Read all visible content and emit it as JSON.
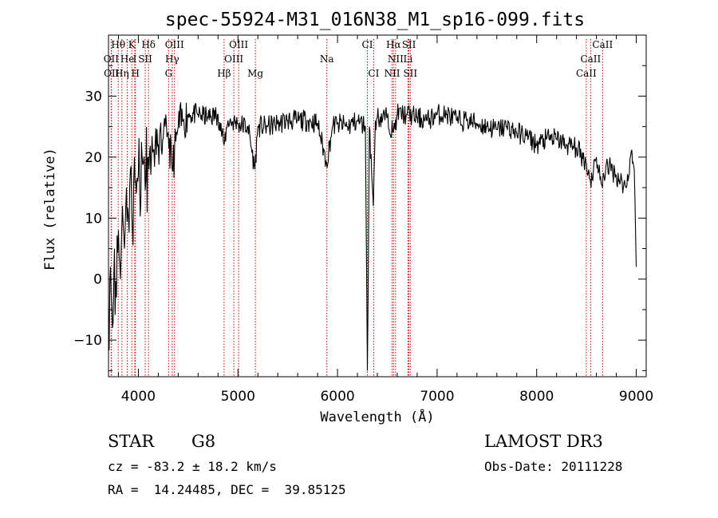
{
  "chart_data": {
    "type": "line",
    "title": "spec-55924-M31_016N38_M1_sp16-099.fits",
    "xlabel": "Wavelength (Å)",
    "ylabel": "Flux (relative)",
    "xlim": [
      3700,
      9100
    ],
    "ylim": [
      -16,
      40
    ],
    "x_ticks": [
      4000,
      5000,
      6000,
      7000,
      8000,
      9000
    ],
    "y_ticks": [
      -10,
      0,
      10,
      20,
      30
    ],
    "grid": false,
    "series": [
      {
        "name": "flux",
        "x": [
          3700,
          3720,
          3740,
          3760,
          3780,
          3800,
          3820,
          3840,
          3860,
          3880,
          3900,
          3920,
          3940,
          3960,
          3980,
          4000,
          4050,
          4100,
          4150,
          4200,
          4250,
          4300,
          4340,
          4400,
          4450,
          4500,
          4600,
          4700,
          4800,
          4860,
          4900,
          5000,
          5100,
          5170,
          5200,
          5300,
          5400,
          5500,
          5600,
          5700,
          5800,
          5890,
          5950,
          6000,
          6100,
          6200,
          6280,
          6300,
          6320,
          6360,
          6380,
          6400,
          6500,
          6560,
          6600,
          6700,
          6800,
          6900,
          7000,
          7100,
          7200,
          7300,
          7400,
          7500,
          7600,
          7700,
          7800,
          7900,
          8000,
          8100,
          8200,
          8300,
          8400,
          8500,
          8540,
          8600,
          8660,
          8700,
          8800,
          8900,
          8950,
          8980,
          9000
        ],
        "y": [
          -5,
          2,
          -8,
          5,
          -3,
          8,
          0,
          12,
          5,
          15,
          10,
          18,
          8,
          20,
          14,
          17,
          19,
          20,
          21,
          22,
          23,
          24,
          18,
          25,
          26,
          27,
          27,
          26.5,
          27,
          22,
          26,
          25.5,
          25,
          18,
          25,
          25,
          25.5,
          26,
          26,
          26,
          25.5,
          19,
          25,
          25.5,
          25,
          26,
          25,
          -15,
          25,
          12,
          26,
          26.5,
          26.5,
          24,
          27,
          27,
          26.5,
          26,
          27,
          27,
          26,
          26,
          25.5,
          25,
          24.5,
          25,
          24,
          23.5,
          22,
          23,
          23,
          22,
          21.5,
          19,
          16,
          20,
          15,
          19,
          17,
          15,
          21,
          18,
          2
        ]
      }
    ],
    "spectral_lines": [
      {
        "label": "Hθ",
        "x": 3798,
        "row": 0
      },
      {
        "label": "K",
        "x": 3934,
        "row": 0
      },
      {
        "label": "Hδ",
        "x": 4102,
        "row": 0
      },
      {
        "label": "OIII",
        "x": 4363,
        "row": 0
      },
      {
        "label": "OIII",
        "x": 5007,
        "row": 0
      },
      {
        "label": "CI",
        "x": 6300,
        "row": 0
      },
      {
        "label": "Hα",
        "x": 6563,
        "row": 0
      },
      {
        "label": "SII",
        "x": 6717,
        "row": 0
      },
      {
        "label": "CaII",
        "x": 8662,
        "row": 0
      },
      {
        "label": "OII",
        "x": 3727,
        "row": 1
      },
      {
        "label": "He",
        "x": 3889,
        "row": 1
      },
      {
        "label": "I",
        "x": 3964,
        "row": 1
      },
      {
        "label": "SII",
        "x": 4069,
        "row": 1
      },
      {
        "label": "Hγ",
        "x": 4340,
        "row": 1
      },
      {
        "label": "OIII",
        "x": 4959,
        "row": 1
      },
      {
        "label": "NII",
        "x": 6583,
        "row": 1
      },
      {
        "label": "Li",
        "x": 6708,
        "row": 1
      },
      {
        "label": "CaII",
        "x": 8542,
        "row": 1
      },
      {
        "label": "OII",
        "x": 3730,
        "row": 2
      },
      {
        "label": "Hη",
        "x": 3835,
        "row": 2
      },
      {
        "label": "H",
        "x": 3970,
        "row": 2
      },
      {
        "label": "G",
        "x": 4304,
        "row": 2
      },
      {
        "label": "Hβ",
        "x": 4861,
        "row": 2
      },
      {
        "label": "Mg",
        "x": 5175,
        "row": 2
      },
      {
        "label": "Na",
        "x": 5893,
        "row": 1
      },
      {
        "label": "CI",
        "x": 6363,
        "row": 2
      },
      {
        "label": "NII",
        "x": 6548,
        "row": 2
      },
      {
        "label": "SII",
        "x": 6731,
        "row": 2
      },
      {
        "label": "CaII",
        "x": 8498,
        "row": 2
      }
    ],
    "line_color": "#000000",
    "marker_color": "#cc0000"
  },
  "info": {
    "class": "STAR",
    "subclass": "G8",
    "cz": "cz = -83.2 ± 18.2 km/s",
    "radec": "RA =  14.24485, DEC =  39.85125",
    "survey": "LAMOST DR3",
    "obsdate": "Obs-Date: 20111228"
  }
}
